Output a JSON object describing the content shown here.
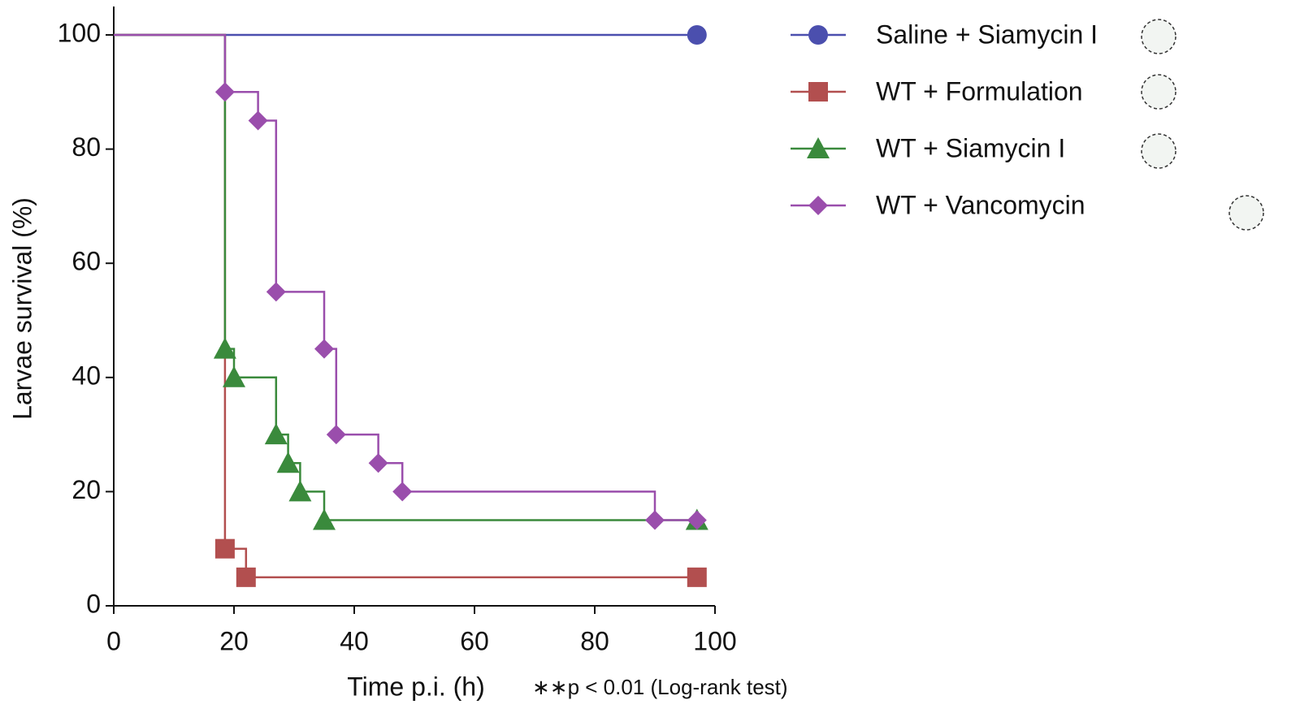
{
  "chart_data": {
    "type": "step",
    "y_label": "Larvae survival (%)",
    "x_label": "Time p.i. (h)",
    "annotation": "∗∗p < 0.01 (Log-rank test)",
    "xlim": [
      0,
      100
    ],
    "xticks": [
      0,
      20,
      40,
      60,
      80,
      100
    ],
    "ylim": [
      0,
      100
    ],
    "yticks": [
      0,
      20,
      40,
      60,
      80,
      100
    ],
    "series": [
      {
        "name": "Saline + Siamycin I",
        "color": "#4b4fae",
        "marker": "circle",
        "x": [
          0,
          97
        ],
        "values": [
          100,
          100
        ]
      },
      {
        "name": "WT + Formulation",
        "color": "#b24f4f",
        "marker": "square",
        "x": [
          0,
          18.5,
          22,
          97
        ],
        "values": [
          100,
          10,
          5,
          5
        ]
      },
      {
        "name": "WT + Siamycin I",
        "color": "#3a8a3c",
        "marker": "triangle",
        "x": [
          0,
          18.5,
          20,
          27,
          29,
          31,
          35,
          97
        ],
        "values": [
          100,
          45,
          40,
          30,
          25,
          20,
          15,
          15
        ]
      },
      {
        "name": "WT + Vancomycin",
        "color": "#9a4eac",
        "marker": "diamond",
        "x": [
          0,
          18.5,
          24,
          27,
          35,
          37,
          44,
          48,
          90,
          97
        ],
        "values": [
          100,
          90,
          85,
          55,
          45,
          30,
          25,
          20,
          15,
          15
        ]
      }
    ]
  }
}
